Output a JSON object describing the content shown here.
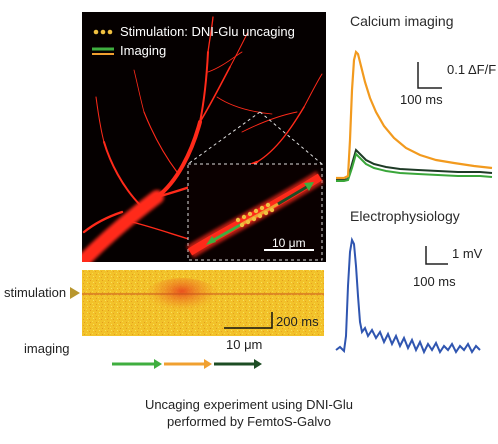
{
  "legend": {
    "stimulation": "Stimulation: DNI-Glu uncaging",
    "imaging": "Imaging"
  },
  "micrograph": {
    "scalebar": "10 μm"
  },
  "kymograph": {
    "stimulation_label": "stimulation",
    "imaging_label": "imaging",
    "time_scale": "200 ms",
    "space_scale": "10 μm"
  },
  "calcium": {
    "title": "Calcium imaging",
    "y_scale": "0.1 ΔF/F",
    "x_scale": "100 ms"
  },
  "ephys": {
    "title": "Electrophysiology",
    "y_scale": "1 mV",
    "x_scale": "100 ms"
  },
  "caption": {
    "line1": "Uncaging experiment using DNI-Glu",
    "line2": "performed by FemtoS-Galvo"
  },
  "colors": {
    "dendrite": "#ff2a1a",
    "uncaging": "#f0a030",
    "imaging_green": "#3fae3f",
    "imaging_dark": "#1d4d24",
    "trace_orange": "#f29a1e",
    "trace_green": "#3aa63a",
    "trace_dark": "#1e3a26",
    "trace_blue": "#2f55b0"
  }
}
